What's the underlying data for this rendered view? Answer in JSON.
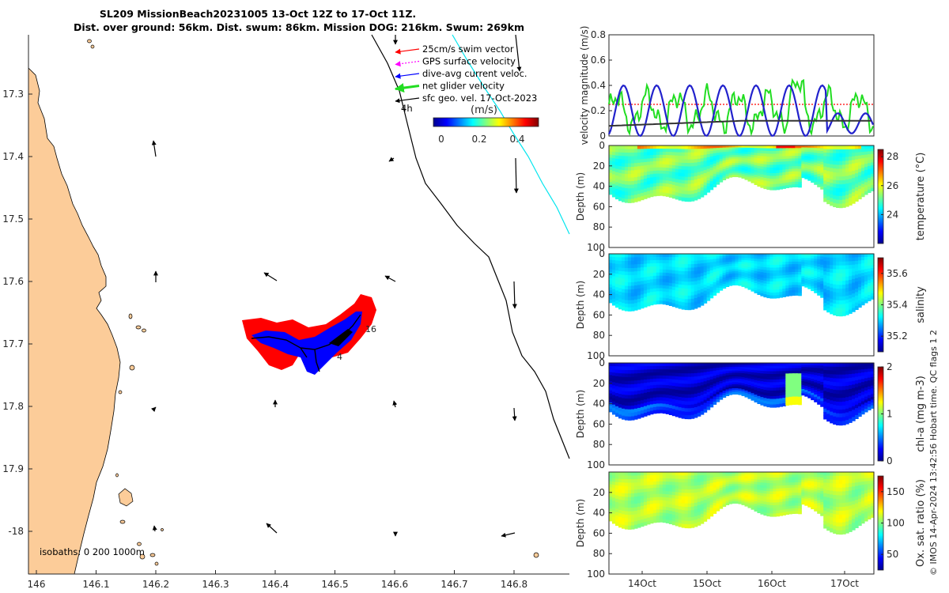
{
  "title": {
    "line1": "SL209 MissionBeach20231005 13-Oct 12Z to 17-Oct 11Z.",
    "line2": "Dist. over ground: 56km. Dist. swum: 86km. Mission DOG: 216km. Swum: 269km"
  },
  "credit": "© IMOS 14-Apr-2024 13:42:56 Hobart time. QC flags 1  2",
  "colors": {
    "land": "#fccc99",
    "swim_vector": "#ff0000",
    "gps_velocity": "#ff00ff",
    "dive_avg": "#0000ff",
    "net_velocity": "#22dd22",
    "sfc_geo": "#000000",
    "isobath_cyan": "#00e5ee",
    "magnitude_black": "#333333"
  },
  "map": {
    "x_ticks": [
      "146",
      "146.1",
      "146.2",
      "146.3",
      "146.4",
      "146.5",
      "146.6",
      "146.7",
      "146.8"
    ],
    "y_ticks": [
      "17.3",
      "17.4",
      "17.5",
      "17.6",
      "17.7",
      "17.8",
      "17.9",
      "-18"
    ],
    "legend": [
      {
        "label": "25cm/s swim vector",
        "color": "#ff0000",
        "style": "arrow"
      },
      {
        "label": "GPS surface velocity",
        "color": "#ff00ff",
        "style": "dotted-arrow"
      },
      {
        "label": "dive-avg current veloc.",
        "color": "#0000ff",
        "style": "arrow"
      },
      {
        "label": "net glider velocity",
        "color": "#22dd22",
        "style": "thick-arrow"
      },
      {
        "label": "sfc geo. vel. 17-Oct-2023",
        "color": "#000000",
        "style": "arrow"
      }
    ],
    "legend_extra": "4h",
    "colorbar_title": "(m/s)",
    "colorbar_ticks": [
      "0",
      "0.2",
      "0.4"
    ],
    "isobaths_label": "isobaths: 0   200  1000m",
    "track_labels": [
      "16",
      "4"
    ]
  },
  "chart_data": [
    {
      "type": "line",
      "name": "velocity-magnitude-panel",
      "ylabel": "velocity magnitude (m/s)",
      "ylim": [
        0,
        0.8
      ],
      "y_ticks": [
        "0",
        "0.2",
        "0.4",
        "0.6",
        "0.8"
      ],
      "x_ticks": [
        "14Oct",
        "15Oct",
        "16Oct",
        "17Oct"
      ],
      "series": [
        {
          "color": "#22dd22",
          "style": "noisy",
          "mean": 0.22,
          "values_hint": [
            0.3,
            0.12,
            0.28,
            0.1,
            0.32,
            0.15,
            0.3,
            0.12,
            0.28,
            0.35,
            0.1,
            0.4,
            0.2,
            0.08,
            0.15
          ]
        },
        {
          "color": "#2222cc",
          "style": "oscillating",
          "peaks": [
            0.43,
            0.43,
            0.41,
            0.39,
            0.41,
            0.38,
            0.2
          ]
        },
        {
          "color": "#333333",
          "style": "smooth",
          "start": 0.08,
          "end": 0.12
        },
        {
          "color": "#ff0000",
          "style": "dashed",
          "value": 0.25
        }
      ]
    },
    {
      "type": "heatmap",
      "name": "temperature-panel",
      "ylabel": "Depth (m)",
      "y_ticks": [
        "0",
        "20",
        "40",
        "60",
        "80",
        "100"
      ],
      "colorbar_label": "temperature (°C)",
      "colorbar_ticks": [
        "24",
        "26",
        "28"
      ],
      "colorbar_range": [
        22,
        28.5
      ]
    },
    {
      "type": "heatmap",
      "name": "salinity-panel",
      "ylabel": "Depth (m)",
      "y_ticks": [
        "0",
        "20",
        "40",
        "60",
        "80",
        "100"
      ],
      "colorbar_label": "salinity",
      "colorbar_ticks": [
        "35.2",
        "35.4",
        "35.6"
      ],
      "colorbar_range": [
        35.1,
        35.7
      ]
    },
    {
      "type": "heatmap",
      "name": "chlorophyll-panel",
      "ylabel": "Depth (m)",
      "y_ticks": [
        "0",
        "20",
        "40",
        "60",
        "80",
        "100"
      ],
      "colorbar_label": "chl-a (mg m-3)",
      "colorbar_ticks": [
        "0",
        "1",
        "2"
      ],
      "colorbar_range": [
        0,
        2
      ]
    },
    {
      "type": "heatmap",
      "name": "oxygen-panel",
      "ylabel": "Depth (m)",
      "y_ticks": [
        "20",
        "40",
        "60",
        "80",
        "100"
      ],
      "x_ticks": [
        "14Oct",
        "15Oct",
        "16Oct",
        "17Oct"
      ],
      "colorbar_label": "Ox. sat. ratio (%)",
      "colorbar_ticks": [
        "50",
        "100",
        "150"
      ],
      "colorbar_range": [
        25,
        175
      ]
    }
  ]
}
